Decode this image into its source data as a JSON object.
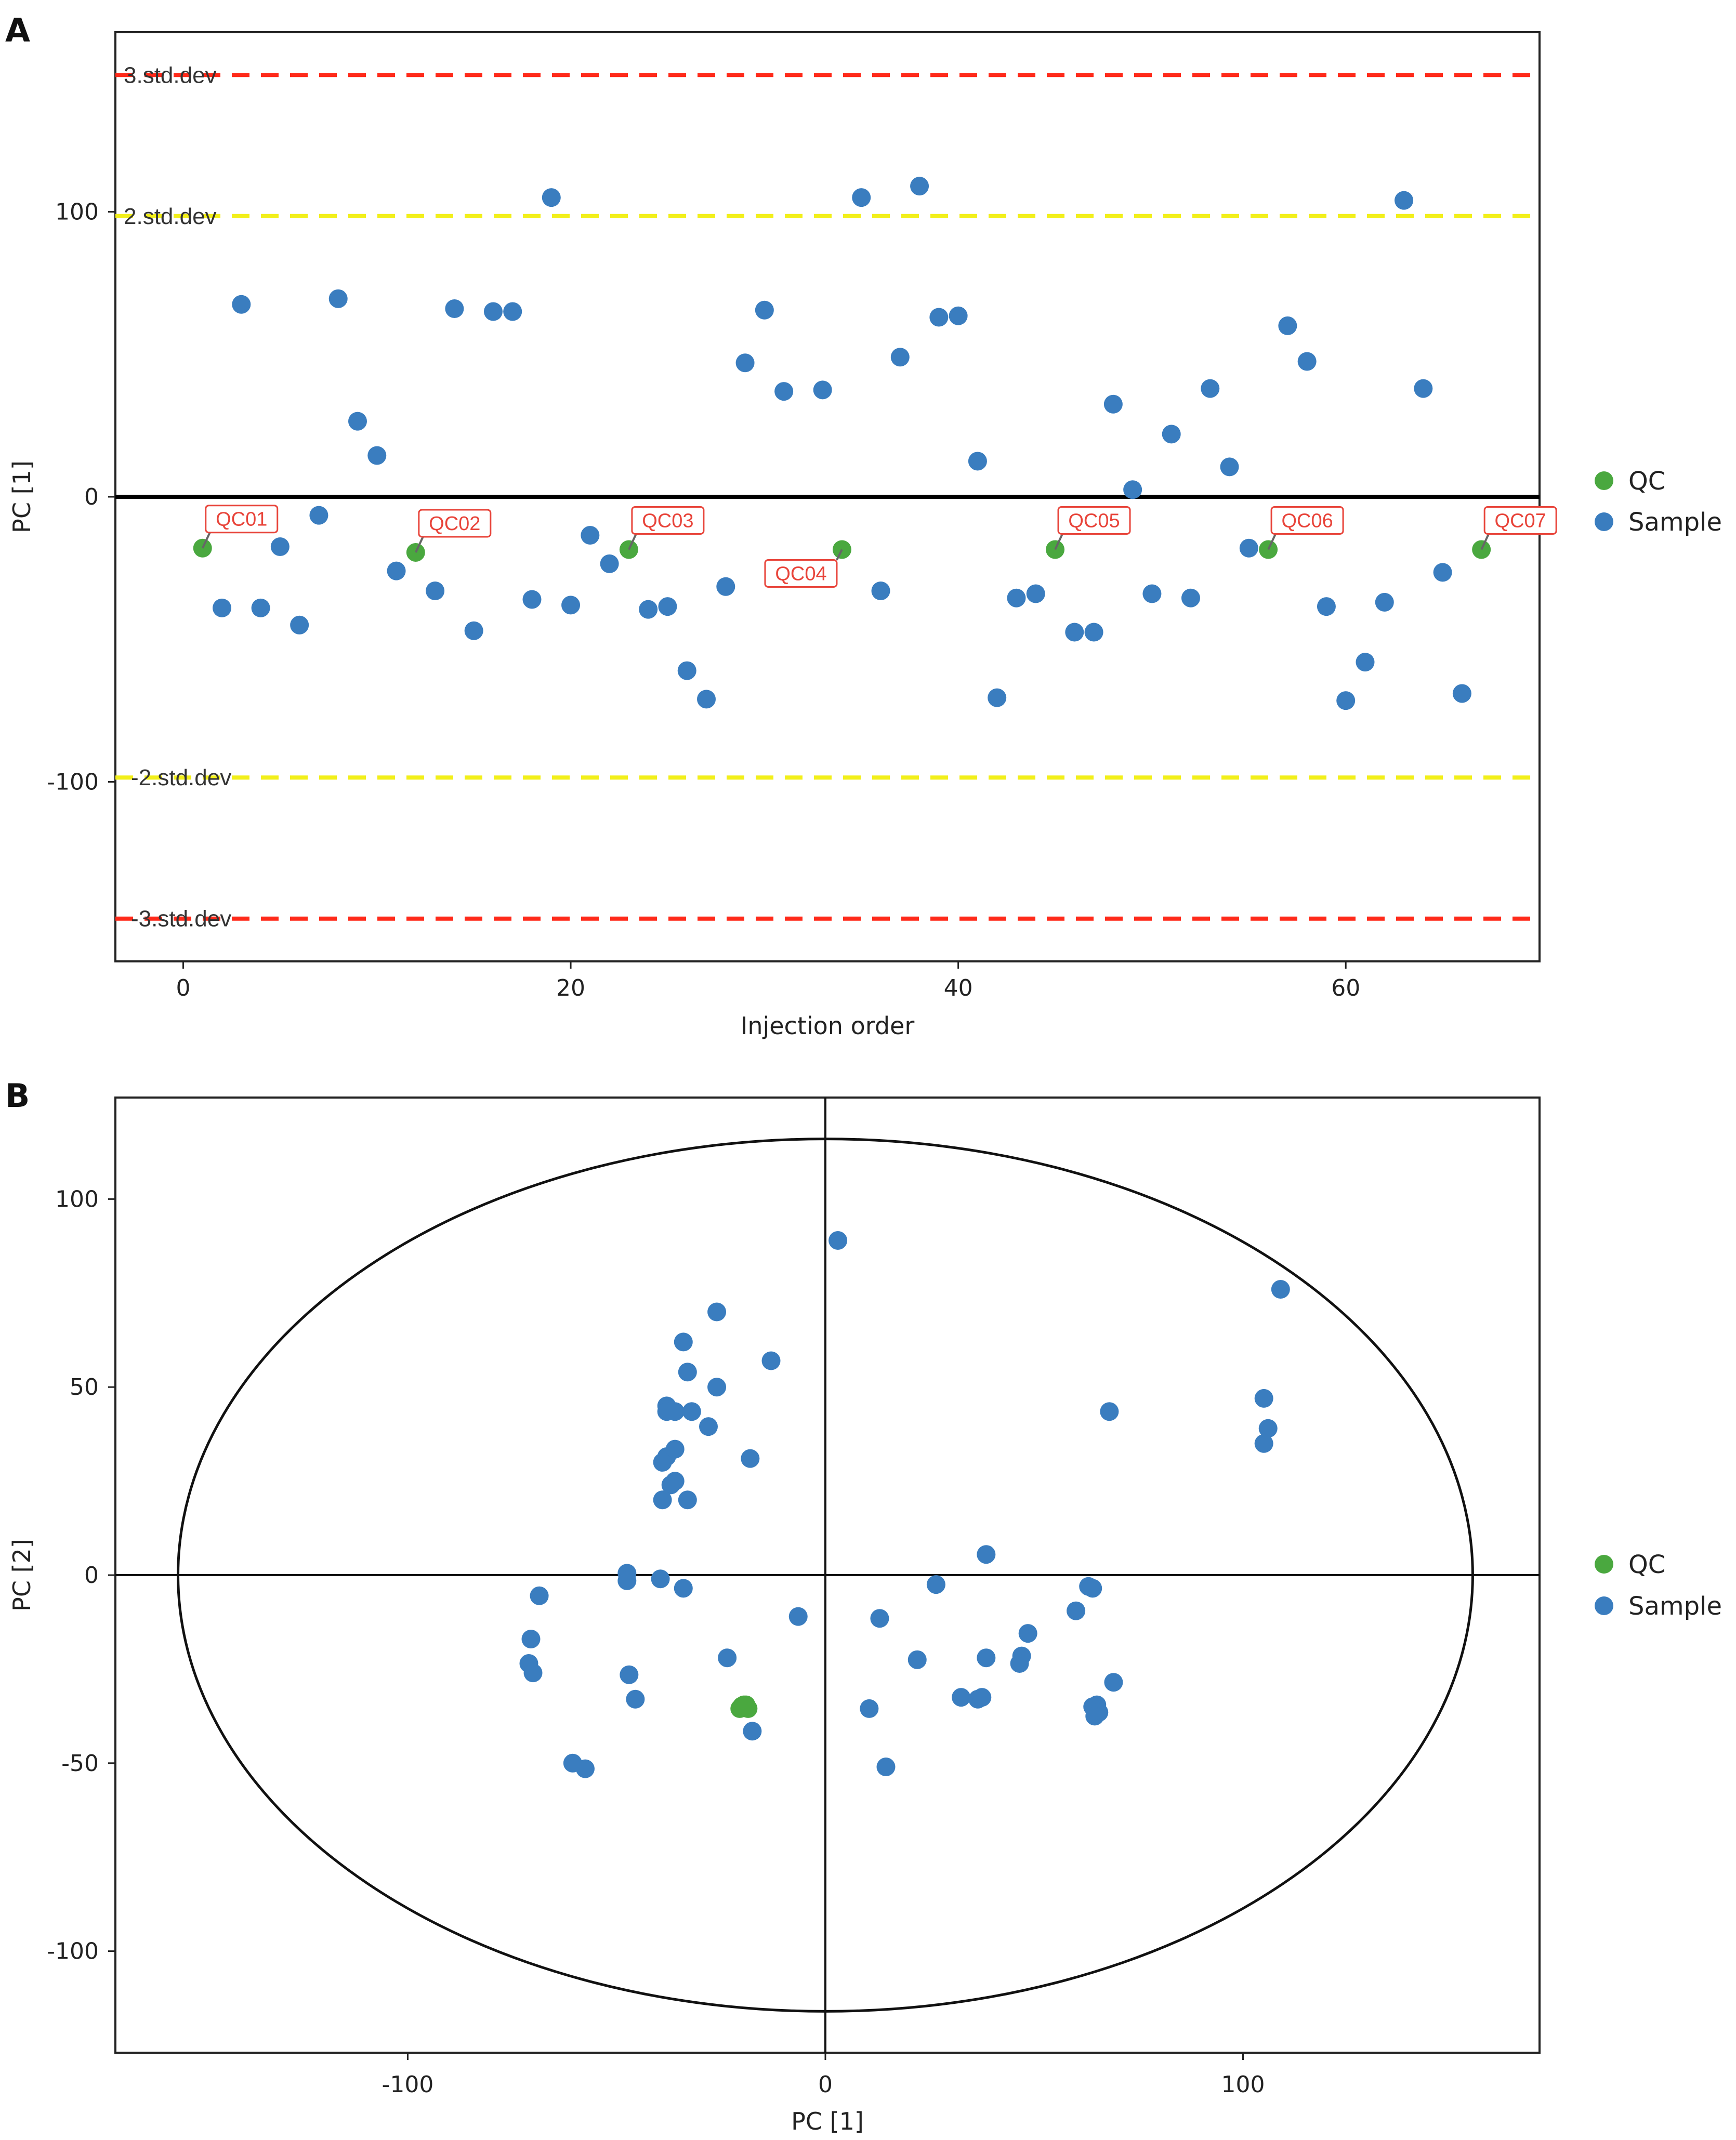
{
  "colors": {
    "qc": "#4aa83f",
    "sample": "#3a7dbf",
    "line3sd": "#ff2a1a",
    "line2sd": "#f2ef1a",
    "label_red": "#e8443a"
  },
  "panels": {
    "a": {
      "letter": "A"
    },
    "b": {
      "letter": "B"
    }
  },
  "legend": {
    "qc": "QC",
    "sample": "Sample"
  },
  "chart_data": [
    {
      "type": "scatter",
      "panel": "A",
      "xlabel": "Injection order",
      "ylabel": "PC [1]",
      "xlim": [
        -3.5,
        70
      ],
      "ylim": [
        -163,
        163
      ],
      "xticks": [
        0,
        20,
        40,
        60
      ],
      "yticks": [
        100,
        0,
        -100
      ],
      "reference_lines": [
        {
          "y": 148,
          "label": "3.std.dev",
          "style": "dashed",
          "color": "red"
        },
        {
          "y": 98.5,
          "label": "2.std.dev",
          "style": "dashed",
          "color": "yellow"
        },
        {
          "y": 0,
          "label": "",
          "style": "solid",
          "color": "black"
        },
        {
          "y": -98.5,
          "label": "-2.std.dev",
          "style": "dashed",
          "color": "yellow"
        },
        {
          "y": -148,
          "label": "-3.std.dev",
          "style": "dashed",
          "color": "red"
        }
      ],
      "series": [
        {
          "name": "QC",
          "points": [
            [
              1,
              -18
            ],
            [
              12,
              -19.5
            ],
            [
              23,
              -18.5
            ],
            [
              34,
              -18.5
            ],
            [
              45,
              -18.5
            ],
            [
              56,
              -18.5
            ],
            [
              67,
              -18.5
            ]
          ],
          "labels": [
            "QC01",
            "QC02",
            "QC03",
            "QC04",
            "QC05",
            "QC06",
            "QC07"
          ]
        },
        {
          "name": "Sample",
          "points": [
            [
              2,
              -39
            ],
            [
              3,
              67.5
            ],
            [
              4,
              -39
            ],
            [
              5,
              -17.5
            ],
            [
              6,
              -45
            ],
            [
              7,
              -6.5
            ],
            [
              8,
              69.5
            ],
            [
              9,
              26.5
            ],
            [
              10,
              14.5
            ],
            [
              11,
              -26
            ],
            [
              13,
              -33
            ],
            [
              14,
              66
            ],
            [
              15,
              -47
            ],
            [
              16,
              65
            ],
            [
              17,
              65
            ],
            [
              18,
              -36
            ],
            [
              19,
              105
            ],
            [
              20,
              -38
            ],
            [
              21,
              -13.5
            ],
            [
              22,
              -23.5
            ],
            [
              24,
              -39.5
            ],
            [
              25,
              -38.5
            ],
            [
              26,
              -61
            ],
            [
              27,
              -71
            ],
            [
              28,
              -31.5
            ],
            [
              29,
              47
            ],
            [
              30,
              65.5
            ],
            [
              31,
              37
            ],
            [
              33,
              37.5
            ],
            [
              35,
              105
            ],
            [
              36,
              -33
            ],
            [
              37,
              49
            ],
            [
              38,
              109
            ],
            [
              39,
              63
            ],
            [
              40,
              63.5
            ],
            [
              41,
              12.5
            ],
            [
              42,
              -70.5
            ],
            [
              43,
              -35.5
            ],
            [
              44,
              -34
            ],
            [
              46,
              -47.5
            ],
            [
              47,
              -47.5
            ],
            [
              48,
              32.5
            ],
            [
              49,
              2.5
            ],
            [
              50,
              -34
            ],
            [
              51,
              22
            ],
            [
              52,
              -35.5
            ],
            [
              53,
              38
            ],
            [
              54,
              10.5
            ],
            [
              55,
              -18
            ],
            [
              57,
              60
            ],
            [
              58,
              47.5
            ],
            [
              59,
              -38.5
            ],
            [
              60,
              -71.5
            ],
            [
              61,
              -58
            ],
            [
              62,
              -37
            ],
            [
              63,
              104
            ],
            [
              64,
              38
            ],
            [
              65,
              -26.5
            ],
            [
              66,
              -69
            ]
          ]
        }
      ]
    },
    {
      "type": "scatter",
      "panel": "B",
      "xlabel": "PC [1]",
      "ylabel": "PC [2]",
      "xlim": [
        -170,
        171
      ],
      "ylim": [
        -127,
        127
      ],
      "xticks": [
        -100,
        0,
        100
      ],
      "yticks": [
        100,
        50,
        0,
        -50,
        -100
      ],
      "ellipse": {
        "center": [
          0,
          0
        ],
        "rx": 155,
        "ry": 116
      },
      "series": [
        {
          "name": "QC",
          "points": [
            [
              -20,
              -35
            ],
            [
              -19,
              -35
            ],
            [
              -18.5,
              -35.5
            ],
            [
              -19.5,
              -34.5
            ],
            [
              -20.5,
              -35.5
            ],
            [
              -19,
              -34.5
            ],
            [
              -20,
              -34.8
            ]
          ]
        },
        {
          "name": "Sample",
          "points": [
            [
              3,
              89
            ],
            [
              109,
              76
            ],
            [
              -26,
              70
            ],
            [
              -34,
              62
            ],
            [
              -13,
              57
            ],
            [
              -33,
              54
            ],
            [
              -26,
              50
            ],
            [
              105,
              47
            ],
            [
              -38,
              45
            ],
            [
              -38,
              43.5
            ],
            [
              -36,
              43.5
            ],
            [
              -32,
              43.5
            ],
            [
              68,
              43.5
            ],
            [
              106,
              39
            ],
            [
              -28,
              39.5
            ],
            [
              105,
              35
            ],
            [
              -36,
              33.5
            ],
            [
              -38,
              31.5
            ],
            [
              -39,
              30
            ],
            [
              -18,
              31
            ],
            [
              -36,
              25
            ],
            [
              -37,
              24
            ],
            [
              -39,
              20
            ],
            [
              -33,
              20
            ],
            [
              38.5,
              5.5
            ],
            [
              -47.5,
              0.5
            ],
            [
              -47.5,
              -1.5
            ],
            [
              -39.5,
              -1
            ],
            [
              -34,
              -3.5
            ],
            [
              -68.5,
              -5.5
            ],
            [
              26.5,
              -2.5
            ],
            [
              63,
              -3
            ],
            [
              64,
              -3.5
            ],
            [
              60,
              -9.5
            ],
            [
              -6.5,
              -11
            ],
            [
              13,
              -11.5
            ],
            [
              48.5,
              -15.5
            ],
            [
              -70.5,
              -17
            ],
            [
              -71,
              -23.5
            ],
            [
              -70,
              -26
            ],
            [
              -23.5,
              -22
            ],
            [
              22,
              -22.5
            ],
            [
              38.5,
              -22
            ],
            [
              47,
              -21.5
            ],
            [
              46.5,
              -23.5
            ],
            [
              -47,
              -26.5
            ],
            [
              69,
              -28.5
            ],
            [
              -45.5,
              -33
            ],
            [
              32.5,
              -32.5
            ],
            [
              36.5,
              -33
            ],
            [
              37.5,
              -32.5
            ],
            [
              65,
              -34.5
            ],
            [
              64,
              -35
            ],
            [
              10.5,
              -35.5
            ],
            [
              65.5,
              -36.5
            ],
            [
              64.5,
              -37.5
            ],
            [
              -17.5,
              -41.5
            ],
            [
              -60.5,
              -50
            ],
            [
              -57.5,
              -51.5
            ],
            [
              14.5,
              -51
            ]
          ]
        }
      ]
    }
  ]
}
